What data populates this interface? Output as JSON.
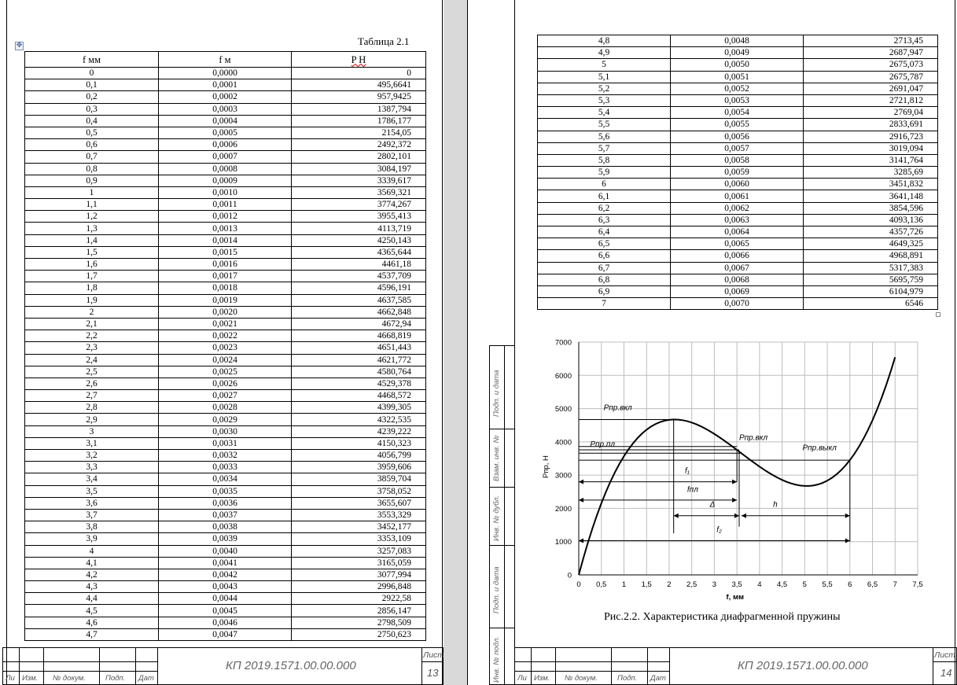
{
  "left_page": {
    "table_caption": "Таблица 2.1",
    "move_handle_icon": "move-handle-icon",
    "headers": [
      "f мм",
      "f м",
      "P Н"
    ],
    "rows": [
      [
        "0",
        "0,0000",
        "0"
      ],
      [
        "0,1",
        "0,0001",
        "495,6641"
      ],
      [
        "0,2",
        "0,0002",
        "957,9425"
      ],
      [
        "0,3",
        "0,0003",
        "1387,794"
      ],
      [
        "0,4",
        "0,0004",
        "1786,177"
      ],
      [
        "0,5",
        "0,0005",
        "2154,05"
      ],
      [
        "0,6",
        "0,0006",
        "2492,372"
      ],
      [
        "0,7",
        "0,0007",
        "2802,101"
      ],
      [
        "0,8",
        "0,0008",
        "3084,197"
      ],
      [
        "0,9",
        "0,0009",
        "3339,617"
      ],
      [
        "1",
        "0,0010",
        "3569,321"
      ],
      [
        "1,1",
        "0,0011",
        "3774,267"
      ],
      [
        "1,2",
        "0,0012",
        "3955,413"
      ],
      [
        "1,3",
        "0,0013",
        "4113,719"
      ],
      [
        "1,4",
        "0,0014",
        "4250,143"
      ],
      [
        "1,5",
        "0,0015",
        "4365,644"
      ],
      [
        "1,6",
        "0,0016",
        "4461,18"
      ],
      [
        "1,7",
        "0,0017",
        "4537,709"
      ],
      [
        "1,8",
        "0,0018",
        "4596,191"
      ],
      [
        "1,9",
        "0,0019",
        "4637,585"
      ],
      [
        "2",
        "0,0020",
        "4662,848"
      ],
      [
        "2,1",
        "0,0021",
        "4672,94"
      ],
      [
        "2,2",
        "0,0022",
        "4668,819"
      ],
      [
        "2,3",
        "0,0023",
        "4651,443"
      ],
      [
        "2,4",
        "0,0024",
        "4621,772"
      ],
      [
        "2,5",
        "0,0025",
        "4580,764"
      ],
      [
        "2,6",
        "0,0026",
        "4529,378"
      ],
      [
        "2,7",
        "0,0027",
        "4468,572"
      ],
      [
        "2,8",
        "0,0028",
        "4399,305"
      ],
      [
        "2,9",
        "0,0029",
        "4322,535"
      ],
      [
        "3",
        "0,0030",
        "4239,222"
      ],
      [
        "3,1",
        "0,0031",
        "4150,323"
      ],
      [
        "3,2",
        "0,0032",
        "4056,799"
      ],
      [
        "3,3",
        "0,0033",
        "3959,606"
      ],
      [
        "3,4",
        "0,0034",
        "3859,704"
      ],
      [
        "3,5",
        "0,0035",
        "3758,052"
      ],
      [
        "3,6",
        "0,0036",
        "3655,607"
      ],
      [
        "3,7",
        "0,0037",
        "3553,329"
      ],
      [
        "3,8",
        "0,0038",
        "3452,177"
      ],
      [
        "3,9",
        "0,0039",
        "3353,109"
      ],
      [
        "4",
        "0,0040",
        "3257,083"
      ],
      [
        "4,1",
        "0,0041",
        "3165,059"
      ],
      [
        "4,2",
        "0,0042",
        "3077,994"
      ],
      [
        "4,3",
        "0,0043",
        "2996,848"
      ],
      [
        "4,4",
        "0,0044",
        "2922,58"
      ],
      [
        "4,5",
        "0,0045",
        "2856,147"
      ],
      [
        "4,6",
        "0,0046",
        "2798,509"
      ],
      [
        "4,7",
        "0,0047",
        "2750,623"
      ]
    ],
    "stamp": {
      "labels": [
        "Ли",
        "Изм.",
        "№ докум.",
        "Подп.",
        "Дат"
      ],
      "code": "КП 2019.1571.00.00.000",
      "sheet_label": "Лист",
      "sheet_number": "13"
    }
  },
  "right_page": {
    "rows": [
      [
        "4,8",
        "0,0048",
        "2713,45"
      ],
      [
        "4,9",
        "0,0049",
        "2687,947"
      ],
      [
        "5",
        "0,0050",
        "2675,073"
      ],
      [
        "5,1",
        "0,0051",
        "2675,787"
      ],
      [
        "5,2",
        "0,0052",
        "2691,047"
      ],
      [
        "5,3",
        "0,0053",
        "2721,812"
      ],
      [
        "5,4",
        "0,0054",
        "2769,04"
      ],
      [
        "5,5",
        "0,0055",
        "2833,691"
      ],
      [
        "5,6",
        "0,0056",
        "2916,723"
      ],
      [
        "5,7",
        "0,0057",
        "3019,094"
      ],
      [
        "5,8",
        "0,0058",
        "3141,764"
      ],
      [
        "5,9",
        "0,0059",
        "3285,69"
      ],
      [
        "6",
        "0,0060",
        "3451,832"
      ],
      [
        "6,1",
        "0,0061",
        "3641,148"
      ],
      [
        "6,2",
        "0,0062",
        "3854,596"
      ],
      [
        "6,3",
        "0,0063",
        "4093,136"
      ],
      [
        "6,4",
        "0,0064",
        "4357,726"
      ],
      [
        "6,5",
        "0,0065",
        "4649,325"
      ],
      [
        "6,6",
        "0,0066",
        "4968,891"
      ],
      [
        "6,7",
        "0,0067",
        "5317,383"
      ],
      [
        "6,8",
        "0,0068",
        "5695,759"
      ],
      [
        "6,9",
        "0,0069",
        "6104,979"
      ],
      [
        "7",
        "0,0070",
        "6546"
      ]
    ],
    "figure_caption": "Рис.2.2. Характеристика диафрагменной пружины",
    "sidebar_labels": [
      "Подп. и дата",
      "Взам. инв. №",
      "Инв. № дубл.",
      "Подп. и дата",
      "Инв. № подл."
    ],
    "stamp": {
      "labels": [
        "Ли",
        "Изм.",
        "№ докум.",
        "Подп.",
        "Дат"
      ],
      "code": "КП 2019.1571.00.00.000",
      "sheet_label": "Лист",
      "sheet_number": "14"
    }
  },
  "chart_data": {
    "type": "line",
    "xlabel": "f, мм",
    "ylabel": "Рпр, Н",
    "xlim": [
      0,
      7.5
    ],
    "ylim": [
      0,
      7000
    ],
    "x_ticks": [
      "0",
      "0,5",
      "1",
      "1,5",
      "2",
      "2,5",
      "3",
      "3,5",
      "4",
      "4,5",
      "5",
      "5,5",
      "6",
      "6,5",
      "7",
      "7,5"
    ],
    "y_ticks": [
      "0",
      "1000",
      "2000",
      "3000",
      "4000",
      "5000",
      "6000",
      "7000"
    ],
    "grid": true,
    "series": [
      {
        "x": [
          0,
          0.1,
          0.2,
          0.3,
          0.4,
          0.5,
          0.6,
          0.7,
          0.8,
          0.9,
          1,
          1.1,
          1.2,
          1.3,
          1.4,
          1.5,
          1.6,
          1.7,
          1.8,
          1.9,
          2,
          2.1,
          2.2,
          2.3,
          2.4,
          2.5,
          2.6,
          2.7,
          2.8,
          2.9,
          3,
          3.1,
          3.2,
          3.3,
          3.4,
          3.5,
          3.6,
          3.7,
          3.8,
          3.9,
          4,
          4.1,
          4.2,
          4.3,
          4.4,
          4.5,
          4.6,
          4.7,
          4.8,
          4.9,
          5,
          5.1,
          5.2,
          5.3,
          5.4,
          5.5,
          5.6,
          5.7,
          5.8,
          5.9,
          6,
          6.1,
          6.2,
          6.3,
          6.4,
          6.5,
          6.6,
          6.7,
          6.8,
          6.9,
          7
        ],
        "y": [
          0,
          495.6641,
          957.9425,
          1387.794,
          1786.177,
          2154.05,
          2492.372,
          2802.101,
          3084.197,
          3339.617,
          3569.321,
          3774.267,
          3955.413,
          4113.719,
          4250.143,
          4365.644,
          4461.18,
          4537.709,
          4596.191,
          4637.585,
          4662.848,
          4672.94,
          4668.819,
          4651.443,
          4621.772,
          4580.764,
          4529.378,
          4468.572,
          4399.305,
          4322.535,
          4239.222,
          4150.323,
          4056.799,
          3959.606,
          3859.704,
          3758.052,
          3655.607,
          3553.329,
          3452.177,
          3353.109,
          3257.083,
          3165.059,
          3077.994,
          2996.848,
          2922.58,
          2856.147,
          2798.509,
          2750.623,
          2713.45,
          2687.947,
          2675.073,
          2675.787,
          2691.047,
          2721.812,
          2769.04,
          2833.691,
          2916.723,
          3019.094,
          3141.764,
          3285.69,
          3451.832,
          3641.148,
          3854.596,
          4093.136,
          4357.726,
          4649.325,
          4968.891,
          5317.383,
          5695.759,
          6104.979,
          6546
        ]
      }
    ],
    "annotations": [
      {
        "text": "Рпр.вкл"
      },
      {
        "text": "Рпр.пл"
      },
      {
        "text": "Рпр.вкл"
      },
      {
        "text": "Рпр.выкл"
      },
      {
        "text": "f₁"
      },
      {
        "text": "fпл"
      },
      {
        "text": "Δ"
      },
      {
        "text": "h"
      },
      {
        "text": "f₂"
      }
    ]
  }
}
